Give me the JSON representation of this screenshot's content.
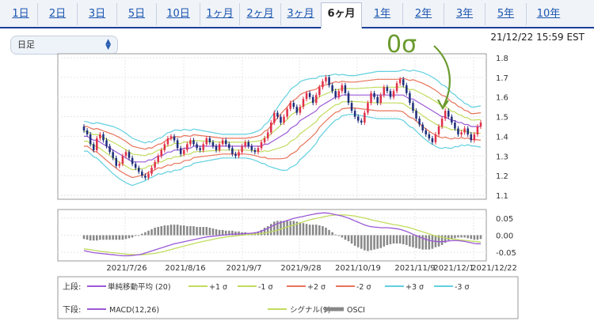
{
  "tabs": [
    {
      "label": "1日",
      "active": false
    },
    {
      "label": "2日",
      "active": false
    },
    {
      "label": "3日",
      "active": false
    },
    {
      "label": "5日",
      "active": false
    },
    {
      "label": "10日",
      "active": false
    },
    {
      "label": "1ヶ月",
      "active": false
    },
    {
      "label": "2ヶ月",
      "active": false
    },
    {
      "label": "3ヶ月",
      "active": false
    },
    {
      "label": "6ヶ月",
      "active": true
    },
    {
      "label": "1年",
      "active": false
    },
    {
      "label": "2年",
      "active": false
    },
    {
      "label": "3年",
      "active": false
    },
    {
      "label": "5年",
      "active": false
    },
    {
      "label": "10年",
      "active": false
    }
  ],
  "period_select": {
    "value": "日足",
    "icon": "updown-chevron-icon"
  },
  "timestamp": "21/12/22 15:59 EST",
  "annotation": {
    "text": "0σ",
    "color": "#6a9a2e"
  },
  "legend": {
    "upper_label": "上段:",
    "lower_label": "下段:",
    "upper_items": [
      {
        "name": "単純移動平均 (20)",
        "color": "#9b59d6"
      },
      {
        "name": "+1 σ",
        "color": "#c2dc5e"
      },
      {
        "name": "-1 σ",
        "color": "#c2dc5e"
      },
      {
        "name": "+2 σ",
        "color": "#e8735a"
      },
      {
        "name": "-2 σ",
        "color": "#e8735a"
      },
      {
        "name": "+3 σ",
        "color": "#62d0df"
      },
      {
        "name": "-3 σ",
        "color": "#62d0df"
      }
    ],
    "lower_items": [
      {
        "name": "MACD(12,26)",
        "color": "#9b59d6"
      },
      {
        "name": "シグナル(9)",
        "color": "#c2dc5e"
      },
      {
        "name": "OSCI",
        "color": "#888888"
      }
    ]
  },
  "chart_data": [
    {
      "type": "candlestick",
      "x_tick_labels": [
        "2021/7/26",
        "2021/8/16",
        "2021/9/7",
        "2021/9/28",
        "2021/10/19",
        "2021/11/9",
        "2021/12/1",
        "2021/12/22"
      ],
      "y_tick_labels": [
        "1.8",
        "1.7",
        "1.6",
        "1.5",
        "1.4",
        "1.3",
        "1.2",
        "1.1"
      ],
      "ylim": [
        1.08,
        1.82
      ],
      "up_color": "#e0314a",
      "down_color": "#1f2f7a",
      "series": [
        {
          "name": "単純移動平均 (20)",
          "color": "#9b59d6"
        },
        {
          "name": "+1 σ",
          "color": "#c2dc5e"
        },
        {
          "name": "-1 σ",
          "color": "#c2dc5e"
        },
        {
          "name": "+2 σ",
          "color": "#e8735a"
        },
        {
          "name": "-2 σ",
          "color": "#e8735a"
        },
        {
          "name": "+3 σ",
          "color": "#62d0df"
        },
        {
          "name": "-3 σ",
          "color": "#62d0df"
        }
      ],
      "close": [
        1.43,
        1.41,
        1.36,
        1.33,
        1.39,
        1.41,
        1.38,
        1.35,
        1.32,
        1.29,
        1.25,
        1.26,
        1.3,
        1.32,
        1.29,
        1.26,
        1.24,
        1.22,
        1.2,
        1.19,
        1.21,
        1.24,
        1.27,
        1.3,
        1.33,
        1.36,
        1.39,
        1.4,
        1.38,
        1.34,
        1.31,
        1.33,
        1.36,
        1.38,
        1.36,
        1.34,
        1.33,
        1.36,
        1.39,
        1.37,
        1.35,
        1.33,
        1.36,
        1.38,
        1.36,
        1.34,
        1.31,
        1.3,
        1.32,
        1.35,
        1.37,
        1.35,
        1.33,
        1.32,
        1.34,
        1.37,
        1.39,
        1.42,
        1.47,
        1.52,
        1.5,
        1.47,
        1.5,
        1.54,
        1.57,
        1.55,
        1.52,
        1.55,
        1.59,
        1.62,
        1.6,
        1.57,
        1.61,
        1.65,
        1.68,
        1.7,
        1.66,
        1.63,
        1.6,
        1.63,
        1.66,
        1.62,
        1.57,
        1.53,
        1.5,
        1.48,
        1.47,
        1.52,
        1.57,
        1.62,
        1.6,
        1.57,
        1.61,
        1.65,
        1.63,
        1.6,
        1.63,
        1.67,
        1.69,
        1.66,
        1.62,
        1.57,
        1.53,
        1.49,
        1.46,
        1.43,
        1.41,
        1.39,
        1.37,
        1.41,
        1.45,
        1.49,
        1.53,
        1.5,
        1.47,
        1.44,
        1.41,
        1.42,
        1.44,
        1.41,
        1.38,
        1.41,
        1.45,
        1.47
      ],
      "ma20": [
        1.4,
        1.4,
        1.39,
        1.38,
        1.38,
        1.37,
        1.36,
        1.35,
        1.34,
        1.33,
        1.32,
        1.31,
        1.3,
        1.29,
        1.28,
        1.27,
        1.27,
        1.27,
        1.27,
        1.27,
        1.28,
        1.28,
        1.29,
        1.3,
        1.3,
        1.31,
        1.32,
        1.32,
        1.33,
        1.33,
        1.33,
        1.34,
        1.34,
        1.34,
        1.35,
        1.35,
        1.35,
        1.35,
        1.35,
        1.35,
        1.35,
        1.35,
        1.35,
        1.35,
        1.35,
        1.35,
        1.35,
        1.35,
        1.35,
        1.35,
        1.35,
        1.35,
        1.35,
        1.35,
        1.35,
        1.35,
        1.36,
        1.36,
        1.37,
        1.38,
        1.39,
        1.4,
        1.41,
        1.42,
        1.44,
        1.45,
        1.46,
        1.48,
        1.49,
        1.5,
        1.51,
        1.52,
        1.53,
        1.55,
        1.56,
        1.57,
        1.58,
        1.59,
        1.6,
        1.6,
        1.61,
        1.61,
        1.61,
        1.61,
        1.61,
        1.61,
        1.61,
        1.61,
        1.61,
        1.61,
        1.61,
        1.61,
        1.61,
        1.61,
        1.61,
        1.61,
        1.61,
        1.61,
        1.61,
        1.61,
        1.6,
        1.59,
        1.59,
        1.58,
        1.57,
        1.56,
        1.55,
        1.54,
        1.53,
        1.52,
        1.51,
        1.5,
        1.5,
        1.49,
        1.48,
        1.48,
        1.47,
        1.47,
        1.46,
        1.46,
        1.45,
        1.45,
        1.45,
        1.45
      ],
      "sigma": [
        0.025,
        0.025,
        0.026,
        0.028,
        0.03,
        0.032,
        0.034,
        0.036,
        0.038,
        0.04,
        0.041,
        0.042,
        0.042,
        0.042,
        0.041,
        0.04,
        0.038,
        0.036,
        0.034,
        0.032,
        0.031,
        0.03,
        0.03,
        0.03,
        0.031,
        0.032,
        0.033,
        0.034,
        0.034,
        0.034,
        0.033,
        0.032,
        0.031,
        0.03,
        0.029,
        0.028,
        0.027,
        0.026,
        0.025,
        0.024,
        0.023,
        0.022,
        0.021,
        0.02,
        0.02,
        0.02,
        0.02,
        0.02,
        0.02,
        0.02,
        0.02,
        0.021,
        0.022,
        0.024,
        0.026,
        0.029,
        0.033,
        0.037,
        0.042,
        0.047,
        0.052,
        0.057,
        0.061,
        0.064,
        0.066,
        0.067,
        0.067,
        0.066,
        0.065,
        0.063,
        0.061,
        0.058,
        0.055,
        0.052,
        0.049,
        0.046,
        0.043,
        0.041,
        0.039,
        0.037,
        0.035,
        0.034,
        0.033,
        0.033,
        0.033,
        0.034,
        0.035,
        0.036,
        0.037,
        0.038,
        0.039,
        0.04,
        0.04,
        0.04,
        0.04,
        0.04,
        0.04,
        0.04,
        0.041,
        0.043,
        0.045,
        0.047,
        0.049,
        0.051,
        0.053,
        0.055,
        0.056,
        0.057,
        0.057,
        0.057,
        0.056,
        0.054,
        0.052,
        0.05,
        0.047,
        0.044,
        0.041,
        0.038,
        0.036,
        0.034,
        0.033,
        0.033,
        0.034,
        0.035
      ]
    },
    {
      "type": "line",
      "y_tick_labels": [
        "0.05",
        "0.00",
        "-0.05"
      ],
      "ylim": [
        -0.075,
        0.075
      ],
      "series": [
        {
          "name": "MACD(12,26)",
          "color": "#9b59d6",
          "values": [
            -0.045,
            -0.047,
            -0.049,
            -0.051,
            -0.052,
            -0.053,
            -0.054,
            -0.055,
            -0.056,
            -0.057,
            -0.058,
            -0.059,
            -0.06,
            -0.06,
            -0.06,
            -0.059,
            -0.058,
            -0.057,
            -0.055,
            -0.052,
            -0.049,
            -0.046,
            -0.043,
            -0.04,
            -0.037,
            -0.034,
            -0.031,
            -0.028,
            -0.025,
            -0.023,
            -0.021,
            -0.019,
            -0.017,
            -0.015,
            -0.013,
            -0.011,
            -0.009,
            -0.007,
            -0.005,
            -0.004,
            -0.003,
            -0.002,
            -0.001,
            0.0,
            0.001,
            0.002,
            0.003,
            0.003,
            0.004,
            0.004,
            0.005,
            0.005,
            0.006,
            0.007,
            0.009,
            0.012,
            0.016,
            0.02,
            0.025,
            0.03,
            0.034,
            0.037,
            0.04,
            0.043,
            0.046,
            0.049,
            0.051,
            0.053,
            0.055,
            0.057,
            0.059,
            0.061,
            0.063,
            0.064,
            0.065,
            0.065,
            0.064,
            0.062,
            0.06,
            0.058,
            0.056,
            0.053,
            0.05,
            0.046,
            0.042,
            0.038,
            0.034,
            0.03,
            0.027,
            0.025,
            0.024,
            0.023,
            0.022,
            0.022,
            0.022,
            0.021,
            0.02,
            0.019,
            0.017,
            0.014,
            0.011,
            0.007,
            0.003,
            -0.001,
            -0.005,
            -0.009,
            -0.012,
            -0.015,
            -0.017,
            -0.018,
            -0.019,
            -0.019,
            -0.018,
            -0.017,
            -0.016,
            -0.016,
            -0.016,
            -0.017,
            -0.018,
            -0.02,
            -0.022,
            -0.024,
            -0.025,
            -0.025
          ]
        },
        {
          "name": "シグナル(9)",
          "color": "#c2dc5e",
          "values": [
            -0.04,
            -0.041,
            -0.042,
            -0.044,
            -0.045,
            -0.047,
            -0.048,
            -0.049,
            -0.05,
            -0.051,
            -0.052,
            -0.053,
            -0.054,
            -0.055,
            -0.056,
            -0.056,
            -0.057,
            -0.057,
            -0.057,
            -0.056,
            -0.055,
            -0.054,
            -0.053,
            -0.051,
            -0.049,
            -0.047,
            -0.044,
            -0.042,
            -0.039,
            -0.037,
            -0.034,
            -0.032,
            -0.029,
            -0.027,
            -0.025,
            -0.022,
            -0.02,
            -0.018,
            -0.016,
            -0.014,
            -0.012,
            -0.01,
            -0.008,
            -0.007,
            -0.005,
            -0.004,
            -0.003,
            -0.002,
            -0.001,
            0.0,
            0.001,
            0.002,
            0.003,
            0.003,
            0.004,
            0.005,
            0.006,
            0.008,
            0.01,
            0.012,
            0.015,
            0.018,
            0.021,
            0.024,
            0.027,
            0.03,
            0.033,
            0.036,
            0.039,
            0.042,
            0.045,
            0.047,
            0.049,
            0.051,
            0.053,
            0.055,
            0.057,
            0.058,
            0.059,
            0.059,
            0.059,
            0.059,
            0.058,
            0.057,
            0.056,
            0.054,
            0.052,
            0.05,
            0.048,
            0.045,
            0.043,
            0.041,
            0.039,
            0.037,
            0.035,
            0.033,
            0.031,
            0.03,
            0.028,
            0.026,
            0.024,
            0.022,
            0.019,
            0.016,
            0.013,
            0.01,
            0.007,
            0.004,
            0.001,
            -0.002,
            -0.004,
            -0.006,
            -0.008,
            -0.01,
            -0.011,
            -0.012,
            -0.013,
            -0.014,
            -0.015,
            -0.016,
            -0.017,
            -0.018,
            -0.019,
            -0.02
          ]
        },
        {
          "name": "OSCI",
          "color": "#888888",
          "type": "bar"
        }
      ]
    }
  ]
}
